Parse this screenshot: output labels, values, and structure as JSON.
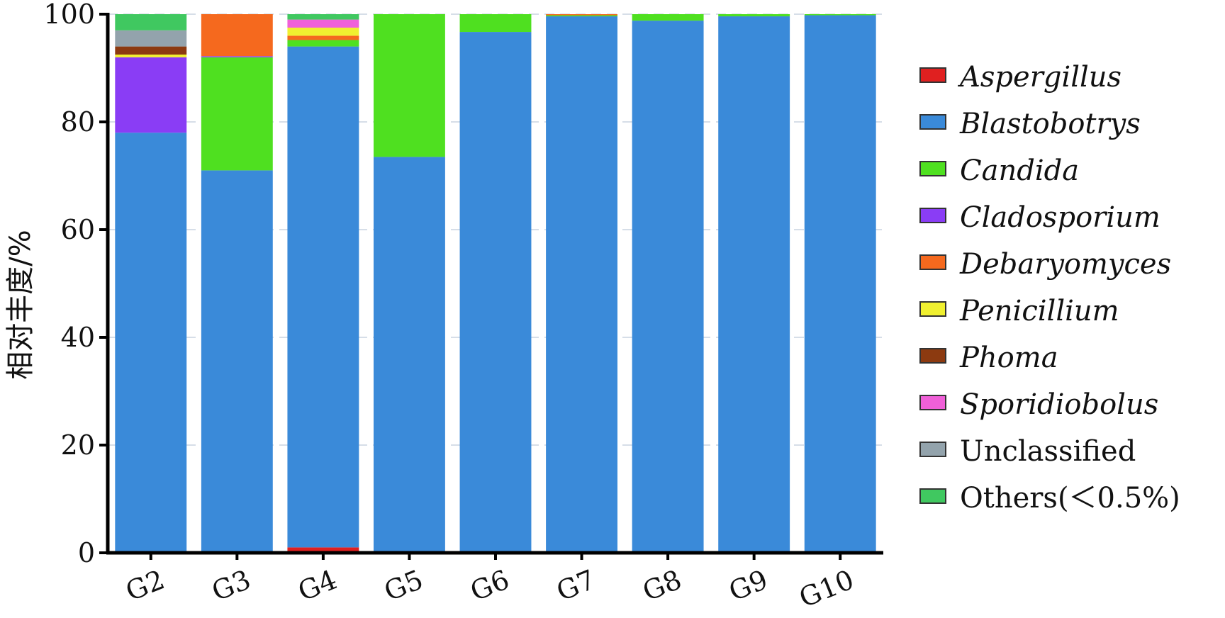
{
  "chart_data": {
    "type": "bar",
    "stacked": true,
    "ylabel": "相对丰度/%",
    "xlabel": "",
    "title": "",
    "ylim": [
      0,
      100
    ],
    "yticks": [
      0,
      20,
      40,
      60,
      80,
      100
    ],
    "grid": true,
    "legend_position": "right",
    "categories": [
      "G2",
      "G3",
      "G4",
      "G5",
      "G6",
      "G7",
      "G8",
      "G9",
      "G10"
    ],
    "series": [
      {
        "name": "Aspergillus",
        "italic": true,
        "color": "#e02020",
        "values": [
          0,
          0,
          1,
          0,
          0,
          0,
          0,
          0,
          0
        ]
      },
      {
        "name": "Blastobotrys",
        "italic": true,
        "color": "#3a8ad9",
        "values": [
          78,
          71,
          93,
          73.5,
          96.7,
          99.6,
          98.8,
          99.6,
          99.8
        ]
      },
      {
        "name": "Candida",
        "italic": true,
        "color": "#4fe020",
        "values": [
          0,
          21,
          1.2,
          26.5,
          3.3,
          0.2,
          1.2,
          0.4,
          0.2
        ]
      },
      {
        "name": "Cladosporium",
        "italic": true,
        "color": "#8a3df5",
        "values": [
          14,
          0.2,
          0,
          0,
          0,
          0,
          0,
          0,
          0
        ]
      },
      {
        "name": "Debaryomyces",
        "italic": true,
        "color": "#f5691e",
        "values": [
          0,
          7.8,
          0.8,
          0,
          0,
          0.2,
          0,
          0,
          0
        ]
      },
      {
        "name": "Penicillium",
        "italic": true,
        "color": "#f0f030",
        "values": [
          0.5,
          0,
          1.5,
          0,
          0,
          0,
          0,
          0,
          0
        ]
      },
      {
        "name": "Phoma",
        "italic": true,
        "color": "#8c3a10",
        "values": [
          1.5,
          0,
          0,
          0,
          0,
          0,
          0,
          0,
          0
        ]
      },
      {
        "name": "Sporidiobolus",
        "italic": true,
        "color": "#f060d8",
        "values": [
          0,
          0,
          1.5,
          0,
          0,
          0,
          0,
          0,
          0
        ]
      },
      {
        "name": "Unclassified",
        "italic": false,
        "color": "#93a3ac",
        "values": [
          3,
          0,
          0,
          0,
          0,
          0,
          0,
          0,
          0
        ]
      },
      {
        "name": "Others(＜0.5%)",
        "italic": false,
        "color": "#40c860",
        "values": [
          3,
          0,
          1,
          0,
          0,
          0,
          0,
          0,
          0
        ]
      }
    ]
  }
}
